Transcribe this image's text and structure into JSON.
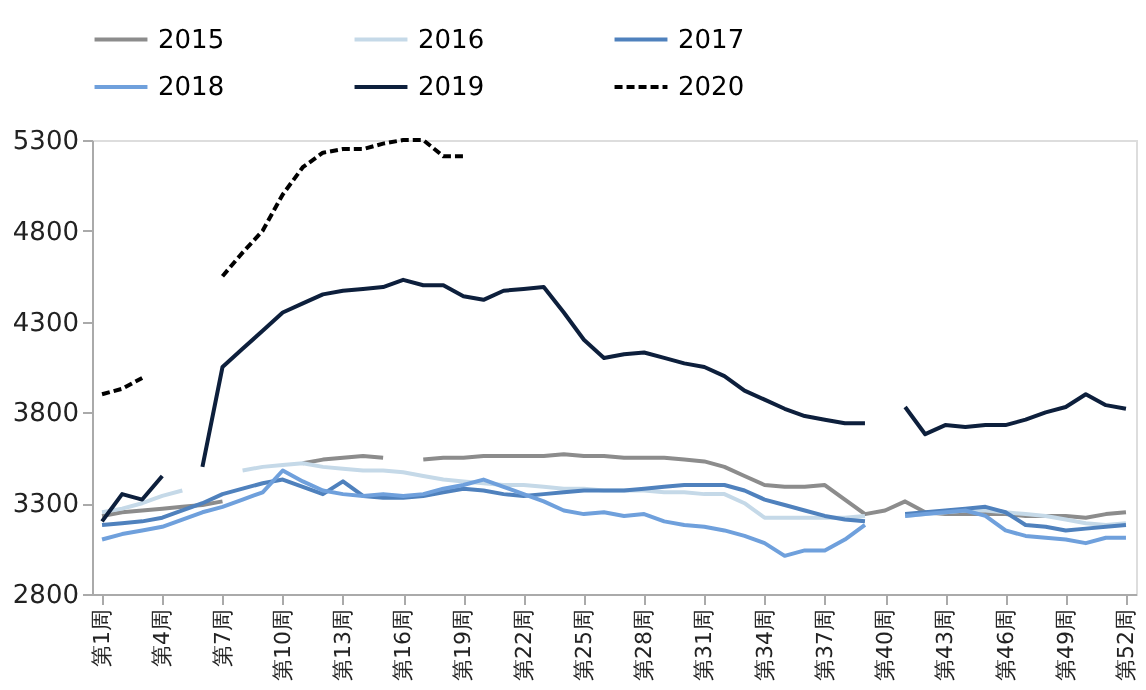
{
  "chart_data": {
    "type": "line",
    "categories": [
      "第1周",
      null,
      null,
      "第4周",
      null,
      null,
      "第7周",
      null,
      null,
      "第10周",
      null,
      null,
      "第13周",
      null,
      null,
      "第16周",
      null,
      null,
      "第19周",
      null,
      null,
      "第22周",
      null,
      null,
      "第25周",
      null,
      null,
      "第28周",
      null,
      null,
      "第31周",
      null,
      null,
      "第34周",
      null,
      null,
      "第37周",
      null,
      null,
      "第40周",
      null,
      null,
      "第43周",
      null,
      null,
      "第46周",
      null,
      null,
      "第49周",
      null,
      null,
      "第52周"
    ],
    "ylim": [
      2800,
      5300
    ],
    "yticks": [
      2800,
      3300,
      3800,
      4300,
      4800,
      5300
    ],
    "grid": false,
    "legend": "top",
    "series": [
      {
        "name": "2015",
        "color": "#8c8c8c",
        "line_style": "solid",
        "values": [
          3230,
          3250,
          3260,
          3270,
          3280,
          3290,
          3310,
          null,
          null,
          null,
          3520,
          3540,
          3550,
          3560,
          3550,
          null,
          3540,
          3550,
          3550,
          3560,
          3560,
          3560,
          3560,
          3570,
          3560,
          3560,
          3550,
          3550,
          3550,
          3540,
          3530,
          3500,
          3450,
          3400,
          3390,
          3390,
          3400,
          3320,
          3240,
          3260,
          3310,
          3250,
          3240,
          3240,
          3240,
          3240,
          3230,
          3230,
          3230,
          3220,
          3240,
          3250
        ]
      },
      {
        "name": "2016",
        "color": "#c5d9e8",
        "line_style": "solid",
        "values": [
          3250,
          3270,
          3300,
          3340,
          3370,
          null,
          null,
          3480,
          3500,
          3510,
          3520,
          3500,
          3490,
          3480,
          3480,
          3470,
          3450,
          3430,
          3420,
          3410,
          3400,
          3400,
          3390,
          3380,
          3380,
          3370,
          3370,
          3370,
          3360,
          3360,
          3350,
          3350,
          3300,
          3220,
          3220,
          3220,
          3220,
          3220,
          3230,
          null,
          3230,
          3240,
          3250,
          3260,
          3260,
          3250,
          3240,
          3230,
          3210,
          3190,
          3180,
          3190
        ]
      },
      {
        "name": "2017",
        "color": "#4f81bd",
        "line_style": "solid",
        "values": [
          3180,
          3190,
          3200,
          3220,
          3260,
          3300,
          3350,
          3380,
          3410,
          3430,
          3390,
          3350,
          3420,
          3340,
          3330,
          3330,
          3340,
          3360,
          3380,
          3370,
          3350,
          3340,
          3350,
          3360,
          3370,
          3370,
          3370,
          3380,
          3390,
          3400,
          3400,
          3400,
          3370,
          3320,
          3290,
          3260,
          3230,
          3210,
          3200,
          null,
          3240,
          3250,
          3260,
          3270,
          3280,
          3250,
          3180,
          3170,
          3150,
          3160,
          3170,
          3180
        ]
      },
      {
        "name": "2018",
        "color": "#6fa0dc",
        "line_style": "solid",
        "values": [
          3100,
          3130,
          3150,
          3170,
          3210,
          3250,
          3280,
          3320,
          3360,
          3480,
          3420,
          3370,
          3350,
          3340,
          3350,
          3340,
          3350,
          3380,
          3400,
          3430,
          3390,
          3350,
          3310,
          3260,
          3240,
          3250,
          3230,
          3240,
          3200,
          3180,
          3170,
          3150,
          3120,
          3080,
          3010,
          3040,
          3040,
          3100,
          3180,
          null,
          3230,
          3240,
          3250,
          3260,
          3230,
          3150,
          3120,
          3110,
          3100,
          3080,
          3110,
          3110
        ]
      },
      {
        "name": "2019",
        "color": "#0d1f3c",
        "line_style": "solid",
        "values": [
          3200,
          3350,
          3320,
          3450,
          null,
          3500,
          4050,
          4150,
          4250,
          4350,
          4400,
          4450,
          4470,
          4480,
          4490,
          4530,
          4500,
          4500,
          4440,
          4420,
          4470,
          4480,
          4490,
          4350,
          4200,
          4100,
          4120,
          4130,
          4100,
          4070,
          4050,
          4000,
          3920,
          3870,
          3820,
          3780,
          3760,
          3740,
          3740,
          null,
          3830,
          3680,
          3730,
          3720,
          3730,
          3730,
          3760,
          3800,
          3830,
          3900,
          3840,
          3820
        ]
      },
      {
        "name": "2020",
        "color": "#000000",
        "line_style": "dashed",
        "values": [
          3900,
          3930,
          3990,
          null,
          null,
          null,
          4550,
          4680,
          4800,
          5000,
          5150,
          5230,
          5250,
          5250,
          5280,
          5300,
          5300,
          5210,
          5210,
          null,
          null,
          null,
          null,
          null,
          null,
          null,
          null,
          null,
          null,
          null,
          null,
          null,
          null,
          null,
          null,
          null,
          null,
          null,
          null,
          null,
          null,
          null,
          null,
          null,
          null,
          null,
          null,
          null,
          null,
          null,
          null,
          null
        ]
      }
    ]
  }
}
